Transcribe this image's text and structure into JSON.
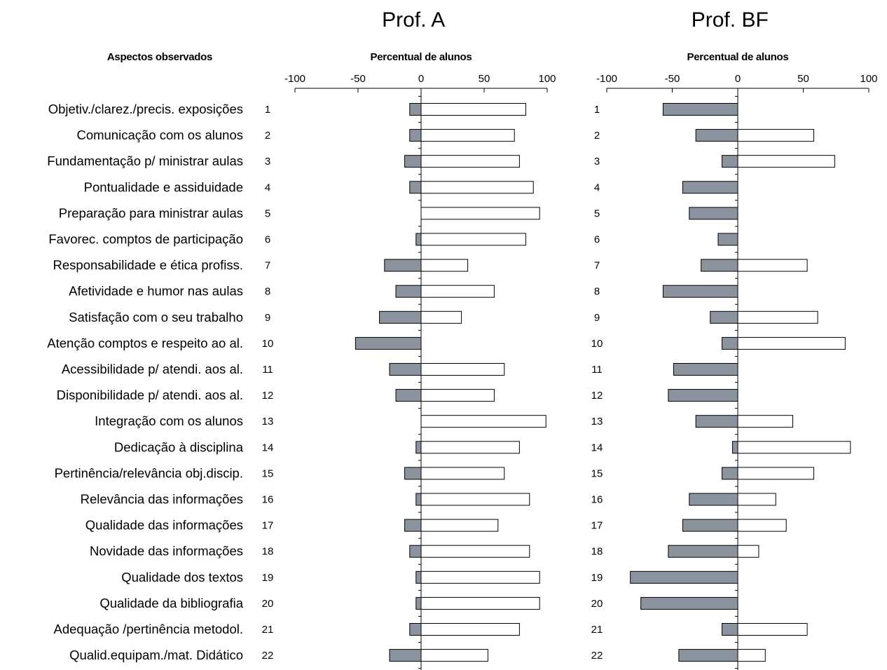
{
  "chart_data": {
    "type": "bar",
    "orientation": "horizontal",
    "aspects_header": "Aspectos observados",
    "aspects": [
      "Objetiv./clarez./precis. exposições",
      "Comunicação com os alunos",
      "Fundamentação p/ ministrar aulas",
      "Pontualidade e assiduidade",
      "Preparação para ministrar aulas",
      "Favorec. comptos de participação",
      "Responsabilidade e ética profiss.",
      "Afetividade e humor nas aulas",
      "Satisfação com o seu trabalho",
      "Atenção comptos e respeito ao al.",
      "Acessibilidade p/ atendi. aos al.",
      "Disponibilidade p/ atendi. aos al.",
      "Integração com os alunos",
      "Dedicação à disciplina",
      "Pertinência/relevância obj.discip.",
      "Relevância das informações",
      "Qualidade das informações",
      "Novidade das informações",
      "Qualidade dos textos",
      "Qualidade da bibliografia",
      "Adequação /pertinência metodol.",
      "Qualid.equipam./mat. Didático"
    ],
    "numbers": [
      "1",
      "2",
      "3",
      "4",
      "5",
      "6",
      "7",
      "8",
      "9",
      "10",
      "11",
      "12",
      "13",
      "14",
      "15",
      "16",
      "17",
      "18",
      "19",
      "20",
      "21",
      "22"
    ],
    "xlim": [
      -100,
      100
    ],
    "xticks": [
      -100,
      -50,
      0,
      50,
      100
    ],
    "grid": false,
    "colors": {
      "negative": "#8b949e",
      "positive": "#ffffff",
      "stroke": "#000000"
    },
    "panels": [
      {
        "title": "Prof. A",
        "xlabel": "Percentual de alunos",
        "negative": [
          -9,
          -9,
          -13,
          -9,
          0,
          -4,
          -29,
          -20,
          -33,
          -52,
          -25,
          -20,
          0,
          -4,
          -13,
          -4,
          -13,
          -9,
          -4,
          -4,
          -9,
          -25
        ],
        "positive": [
          83,
          74,
          78,
          89,
          94,
          83,
          37,
          58,
          32,
          0,
          66,
          58,
          99,
          78,
          66,
          86,
          61,
          86,
          94,
          94,
          78,
          53
        ]
      },
      {
        "title": "Prof. BF",
        "xlabel": "Percentual de alunos",
        "negative": [
          -57,
          -32,
          -12,
          -42,
          -37,
          -15,
          -28,
          -57,
          -21,
          -12,
          -49,
          -53,
          -32,
          -4,
          -12,
          -37,
          -42,
          -53,
          -82,
          -74,
          -12,
          -45
        ],
        "positive": [
          0,
          58,
          74,
          0,
          0,
          0,
          53,
          0,
          61,
          82,
          0,
          0,
          42,
          86,
          58,
          29,
          37,
          16,
          0,
          0,
          53,
          21
        ]
      }
    ]
  }
}
